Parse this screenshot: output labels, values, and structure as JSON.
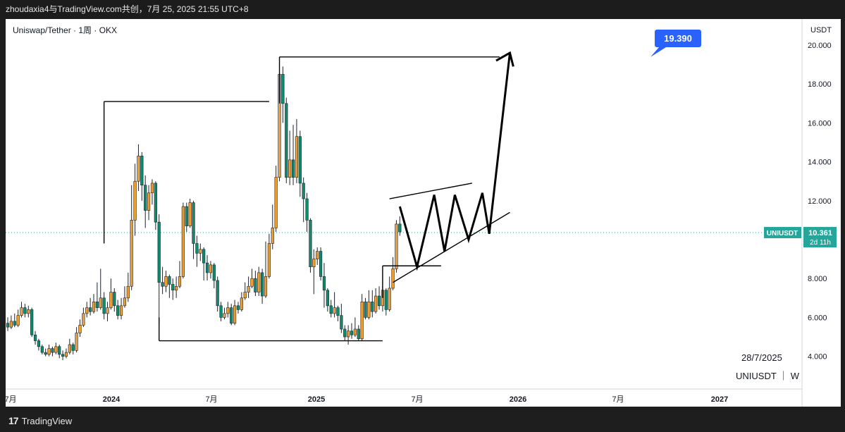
{
  "header": {
    "title": "zhoudaxia4与TradingView.com共创，7月 25, 2025 21:55 UTC+8"
  },
  "chart": {
    "legend": "Uniswap/Tether · 1周 · OKX",
    "currency": "USDT"
  },
  "price_tag": {
    "symbol": "UNIUSDT",
    "price": "10.361",
    "countdown": "2d 11h"
  },
  "target_label": "19.390",
  "watermark": {
    "date": "28/7/2025",
    "symbol": "UNIUSDT ｜ W"
  },
  "footer": {
    "brand": "TradingView",
    "logo_mark": "17"
  },
  "colors": {
    "up": "#f0a030",
    "down": "#0e8c6c",
    "tag_bg": "#26a69a",
    "target_bg": "#2962ff"
  },
  "chart_data": {
    "type": "candlestick",
    "ylim": [
      2.0,
      21.0
    ],
    "y_ticks": [
      "4.000",
      "6.000",
      "8.000",
      "10.000",
      "12.000",
      "14.000",
      "16.000",
      "18.000",
      "20.000"
    ],
    "x_ticks": [
      "7月",
      "2024",
      "7月",
      "2025",
      "7月",
      "2026",
      "7月",
      "2027"
    ],
    "current_price": 10.361,
    "candles": [
      [
        5.7,
        5.5,
        6.0,
        5.3
      ],
      [
        5.5,
        5.8,
        6.1,
        5.4
      ],
      [
        5.8,
        5.6,
        6.2,
        5.5
      ],
      [
        5.6,
        6.1,
        6.4,
        5.5
      ],
      [
        6.1,
        6.5,
        6.8,
        6.0
      ],
      [
        6.5,
        6.2,
        6.7,
        6.0
      ],
      [
        6.2,
        6.4,
        6.6,
        6.0
      ],
      [
        6.4,
        5.1,
        6.5,
        5.0
      ],
      [
        5.1,
        4.8,
        5.3,
        4.6
      ],
      [
        4.8,
        4.5,
        4.9,
        4.3
      ],
      [
        4.5,
        4.2,
        4.6,
        4.1
      ],
      [
        4.2,
        4.1,
        4.4,
        4.0
      ],
      [
        4.1,
        4.4,
        4.6,
        4.0
      ],
      [
        4.4,
        4.2,
        4.5,
        4.0
      ],
      [
        4.2,
        4.5,
        4.7,
        4.1
      ],
      [
        4.5,
        4.1,
        4.6,
        3.9
      ],
      [
        4.1,
        4.0,
        4.3,
        3.8
      ],
      [
        4.0,
        4.2,
        4.4,
        3.9
      ],
      [
        4.2,
        4.6,
        4.9,
        4.1
      ],
      [
        4.6,
        4.3,
        4.7,
        4.1
      ],
      [
        4.3,
        5.2,
        5.5,
        4.2
      ],
      [
        5.2,
        5.6,
        5.9,
        5.0
      ],
      [
        5.6,
        6.2,
        6.5,
        5.5
      ],
      [
        6.2,
        6.5,
        6.8,
        6.0
      ],
      [
        6.5,
        6.3,
        7.0,
        6.1
      ],
      [
        6.3,
        6.8,
        7.2,
        6.2
      ],
      [
        6.8,
        6.5,
        7.8,
        6.3
      ],
      [
        6.5,
        7.0,
        8.5,
        6.4
      ],
      [
        7.0,
        6.2,
        7.3,
        5.9
      ],
      [
        6.2,
        6.5,
        6.8,
        5.8
      ],
      [
        6.5,
        7.3,
        8.0,
        6.4
      ],
      [
        7.3,
        6.6,
        7.5,
        6.3
      ],
      [
        6.6,
        6.1,
        6.9,
        5.9
      ],
      [
        6.1,
        6.6,
        7.0,
        5.9
      ],
      [
        6.6,
        7.0,
        7.6,
        6.5
      ],
      [
        7.0,
        7.6,
        8.3,
        6.8
      ],
      [
        7.6,
        11.0,
        12.8,
        7.4
      ],
      [
        11.0,
        13.0,
        13.9,
        10.2
      ],
      [
        13.0,
        14.3,
        14.9,
        12.5
      ],
      [
        14.3,
        12.8,
        14.5,
        12.0
      ],
      [
        12.8,
        11.5,
        13.3,
        10.6
      ],
      [
        11.5,
        12.4,
        12.8,
        11.0
      ],
      [
        12.4,
        12.9,
        13.1,
        11.8
      ],
      [
        12.9,
        10.9,
        13.0,
        10.5
      ],
      [
        10.9,
        7.8,
        11.3,
        5.7
      ],
      [
        7.8,
        7.6,
        8.6,
        7.2
      ],
      [
        7.6,
        8.1,
        8.4,
        7.3
      ],
      [
        8.1,
        7.7,
        8.2,
        7.0
      ],
      [
        7.7,
        7.4,
        8.0,
        6.9
      ],
      [
        7.4,
        7.6,
        8.1,
        7.0
      ],
      [
        7.6,
        8.1,
        8.9,
        7.5
      ],
      [
        8.1,
        11.7,
        11.9,
        8.0
      ],
      [
        11.7,
        10.7,
        11.9,
        10.4
      ],
      [
        10.7,
        11.9,
        12.1,
        10.6
      ],
      [
        11.9,
        9.8,
        12.0,
        9.0
      ],
      [
        9.8,
        9.3,
        10.2,
        8.6
      ],
      [
        9.3,
        9.5,
        9.8,
        8.9
      ],
      [
        9.5,
        8.8,
        9.6,
        7.9
      ],
      [
        8.8,
        8.3,
        9.2,
        7.9
      ],
      [
        8.3,
        8.7,
        8.9,
        8.0
      ],
      [
        8.7,
        7.9,
        8.8,
        7.5
      ],
      [
        7.9,
        6.6,
        8.1,
        6.3
      ],
      [
        6.6,
        6.0,
        6.8,
        5.8
      ],
      [
        6.0,
        6.2,
        6.5,
        5.9
      ],
      [
        6.2,
        6.5,
        6.8,
        6.0
      ],
      [
        6.5,
        5.7,
        6.7,
        5.6
      ],
      [
        5.7,
        6.6,
        6.9,
        5.6
      ],
      [
        6.6,
        6.4,
        6.8,
        6.2
      ],
      [
        6.4,
        7.0,
        7.3,
        6.3
      ],
      [
        7.0,
        7.3,
        7.8,
        6.9
      ],
      [
        7.3,
        7.6,
        8.1,
        7.0
      ],
      [
        7.6,
        8.0,
        8.5,
        7.5
      ],
      [
        8.0,
        7.3,
        8.4,
        7.1
      ],
      [
        7.3,
        8.3,
        8.6,
        7.1
      ],
      [
        8.3,
        7.1,
        8.5,
        6.7
      ],
      [
        7.1,
        8.1,
        9.9,
        7.0
      ],
      [
        8.1,
        9.8,
        10.3,
        8.0
      ],
      [
        9.8,
        10.6,
        11.8,
        9.5
      ],
      [
        10.6,
        13.2,
        13.8,
        10.4
      ],
      [
        13.2,
        18.5,
        19.2,
        13.0
      ],
      [
        18.5,
        17.0,
        18.9,
        16.0
      ],
      [
        17.0,
        13.2,
        17.3,
        12.9
      ],
      [
        13.2,
        14.1,
        15.6,
        12.8
      ],
      [
        14.1,
        13.2,
        15.9,
        12.8
      ],
      [
        13.2,
        15.3,
        16.2,
        12.9
      ],
      [
        15.3,
        12.9,
        15.6,
        12.2
      ],
      [
        12.9,
        12.1,
        13.2,
        10.9
      ],
      [
        12.1,
        11.0,
        12.4,
        10.4
      ],
      [
        11.0,
        8.6,
        11.1,
        8.3
      ],
      [
        8.6,
        9.0,
        9.5,
        7.2
      ],
      [
        9.0,
        9.4,
        9.6,
        8.7
      ],
      [
        9.4,
        8.1,
        9.6,
        7.9
      ],
      [
        8.1,
        7.4,
        8.8,
        6.5
      ],
      [
        7.4,
        6.6,
        7.5,
        6.3
      ],
      [
        6.6,
        6.2,
        6.9,
        6.0
      ],
      [
        6.2,
        6.5,
        7.3,
        6.0
      ],
      [
        6.5,
        6.1,
        6.6,
        5.8
      ],
      [
        6.1,
        5.4,
        6.7,
        5.2
      ],
      [
        5.4,
        5.0,
        5.6,
        4.8
      ],
      [
        5.0,
        5.3,
        5.6,
        4.6
      ],
      [
        5.3,
        5.1,
        5.7,
        4.9
      ],
      [
        5.1,
        5.4,
        6.0,
        5.0
      ],
      [
        5.4,
        4.9,
        5.6,
        4.8
      ],
      [
        4.9,
        6.8,
        7.2,
        4.8
      ],
      [
        6.8,
        6.0,
        7.0,
        5.9
      ],
      [
        6.0,
        6.8,
        7.4,
        5.9
      ],
      [
        6.8,
        6.3,
        7.4,
        6.0
      ],
      [
        6.3,
        7.1,
        7.5,
        6.2
      ],
      [
        7.1,
        6.6,
        7.6,
        6.4
      ],
      [
        6.6,
        7.4,
        8.5,
        6.3
      ],
      [
        7.4,
        6.4,
        7.5,
        6.1
      ],
      [
        6.4,
        7.5,
        8.1,
        6.3
      ],
      [
        7.5,
        8.5,
        9.1,
        7.4
      ],
      [
        8.5,
        10.8,
        11.0,
        8.3
      ],
      [
        10.8,
        10.4,
        11.2,
        10.2
      ]
    ],
    "pattern_lines": [
      {
        "name": "resistance-2024",
        "from": [
          28,
          17.1
        ],
        "to": [
          76,
          17.1
        ]
      },
      {
        "name": "resistance-2024-drop",
        "from": [
          28,
          17.1
        ],
        "to": [
          28,
          9.8
        ]
      },
      {
        "name": "resistance-2025",
        "from": [
          79,
          19.39
        ],
        "to": [
          143,
          19.39
        ]
      },
      {
        "name": "resistance-2025-drop",
        "from": [
          79,
          19.39
        ],
        "to": [
          79,
          17.0
        ]
      },
      {
        "name": "support-base",
        "from": [
          44,
          4.8
        ],
        "to": [
          109,
          4.8
        ]
      },
      {
        "name": "support-base-drop",
        "from": [
          44,
          4.8
        ],
        "to": [
          44,
          6.0
        ]
      },
      {
        "name": "breakout-level",
        "from": [
          109,
          8.65
        ],
        "to": [
          126,
          8.65
        ]
      },
      {
        "name": "breakout-level-drop",
        "from": [
          109,
          8.65
        ],
        "to": [
          109,
          7.0
        ]
      },
      {
        "name": "channel-top",
        "from": [
          111,
          12.1
        ],
        "to": [
          135,
          12.9
        ]
      },
      {
        "name": "channel-bottom",
        "from": [
          112,
          7.8
        ],
        "to": [
          146,
          11.4
        ]
      }
    ],
    "projection_path": [
      [
        114,
        11.7
      ],
      [
        119,
        8.6
      ],
      [
        124,
        12.3
      ],
      [
        127,
        9.4
      ],
      [
        130,
        12.3
      ],
      [
        134,
        10.0
      ],
      [
        138,
        12.4
      ],
      [
        140,
        10.3
      ],
      [
        146,
        19.6
      ]
    ],
    "projection_arrowhead": [
      [
        142,
        19.2
      ],
      [
        146,
        19.6
      ],
      [
        147,
        18.9
      ]
    ],
    "target_price": 19.39
  }
}
